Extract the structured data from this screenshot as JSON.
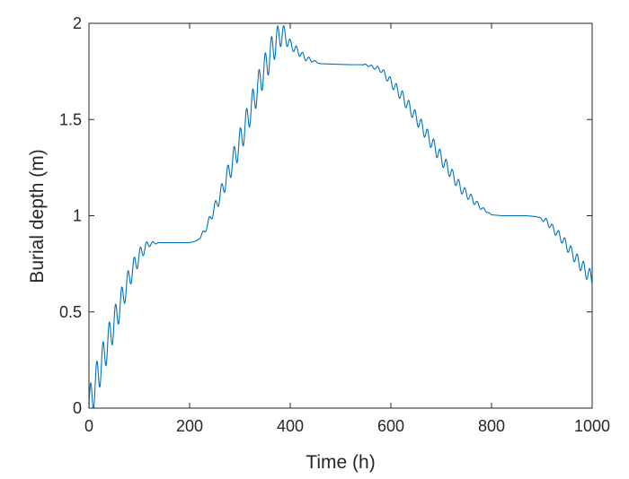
{
  "chart_data": {
    "type": "line",
    "title": "",
    "xlabel": "Time (h)",
    "ylabel": "Burial depth (m)",
    "xlim": [
      0,
      1000
    ],
    "ylim": [
      0,
      2
    ],
    "xticks": [
      0,
      200,
      400,
      600,
      800,
      1000
    ],
    "xtick_labels": [
      "0",
      "200",
      "400",
      "600",
      "800",
      "1000"
    ],
    "yticks": [
      0,
      0.5,
      1,
      1.5,
      2
    ],
    "ytick_labels": [
      "0",
      "0.5",
      "1",
      "1.5",
      "2"
    ],
    "grid": false,
    "legend": "none",
    "color": "#0072BD",
    "series": [
      {
        "oscillation_period_h": 12.4,
        "trend_points": {
          "x": [
            0,
            12,
            25,
            40,
            55,
            70,
            85,
            100,
            110,
            120,
            140,
            200,
            215,
            230,
            260,
            300,
            340,
            370,
            385,
            400,
            430,
            460,
            520,
            550,
            580,
            620,
            660,
            700,
            740,
            780,
            800,
            820,
            870,
            890,
            910,
            940,
            970,
            1000
          ],
          "y": [
            0,
            0.12,
            0.23,
            0.36,
            0.48,
            0.6,
            0.71,
            0.79,
            0.83,
            0.855,
            0.86,
            0.86,
            0.87,
            0.92,
            1.1,
            1.38,
            1.7,
            1.9,
            1.95,
            1.89,
            1.82,
            1.79,
            1.785,
            1.785,
            1.76,
            1.63,
            1.47,
            1.3,
            1.14,
            1.04,
            1.005,
            1.0,
            1.0,
            0.995,
            0.97,
            0.88,
            0.77,
            0.67
          ]
        },
        "oscillation_amplitude_points": {
          "x": [
            0,
            50,
            100,
            125,
            140,
            210,
            240,
            300,
            370,
            385,
            400,
            440,
            460,
            540,
            570,
            620,
            700,
            760,
            790,
            800,
            890,
            910,
            1000
          ],
          "y": [
            0.1,
            0.08,
            0.04,
            0.01,
            0.0,
            0.0,
            0.02,
            0.07,
            0.08,
            0.05,
            0.025,
            0.01,
            0.0,
            0.0,
            0.01,
            0.03,
            0.035,
            0.02,
            0.005,
            0.0,
            0.0,
            0.015,
            0.04
          ]
        }
      }
    ]
  }
}
